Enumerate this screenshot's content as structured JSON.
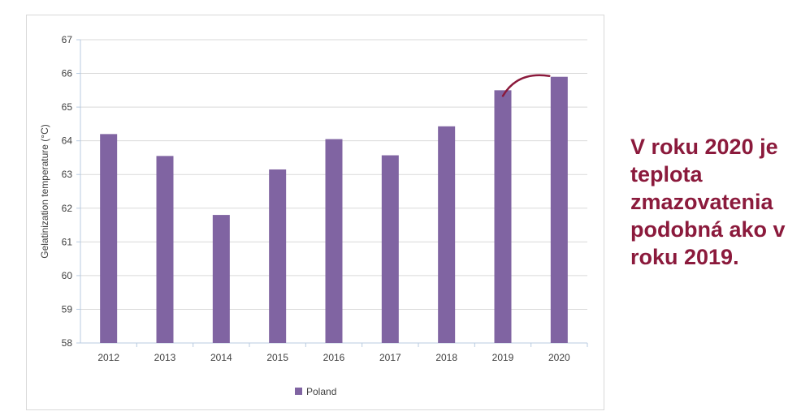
{
  "chart_data": {
    "type": "bar",
    "categories": [
      "2012",
      "2013",
      "2014",
      "2015",
      "2016",
      "2017",
      "2018",
      "2019",
      "2020"
    ],
    "series": [
      {
        "name": "Poland",
        "values": [
          64.2,
          63.55,
          61.8,
          63.15,
          64.05,
          63.57,
          64.43,
          65.5,
          65.9
        ],
        "color": "#8064a2"
      }
    ],
    "yticks": [
      "58",
      "59",
      "60",
      "61",
      "62",
      "63",
      "64",
      "65",
      "66",
      "67"
    ],
    "ylabel": "Gelatinization temperature (°C)",
    "ylim": [
      58,
      67
    ],
    "grid": true,
    "legend_position": "bottom",
    "annotation": {
      "type": "curved-arrow",
      "from_category": "2019",
      "to_category": "2020",
      "color": "#8b1a3c"
    }
  },
  "callout": {
    "text": "V roku 2020 je\nteplota\nzmazovatenia\npodobná ako v\nroku 2019.",
    "color": "#8b1a3c"
  }
}
